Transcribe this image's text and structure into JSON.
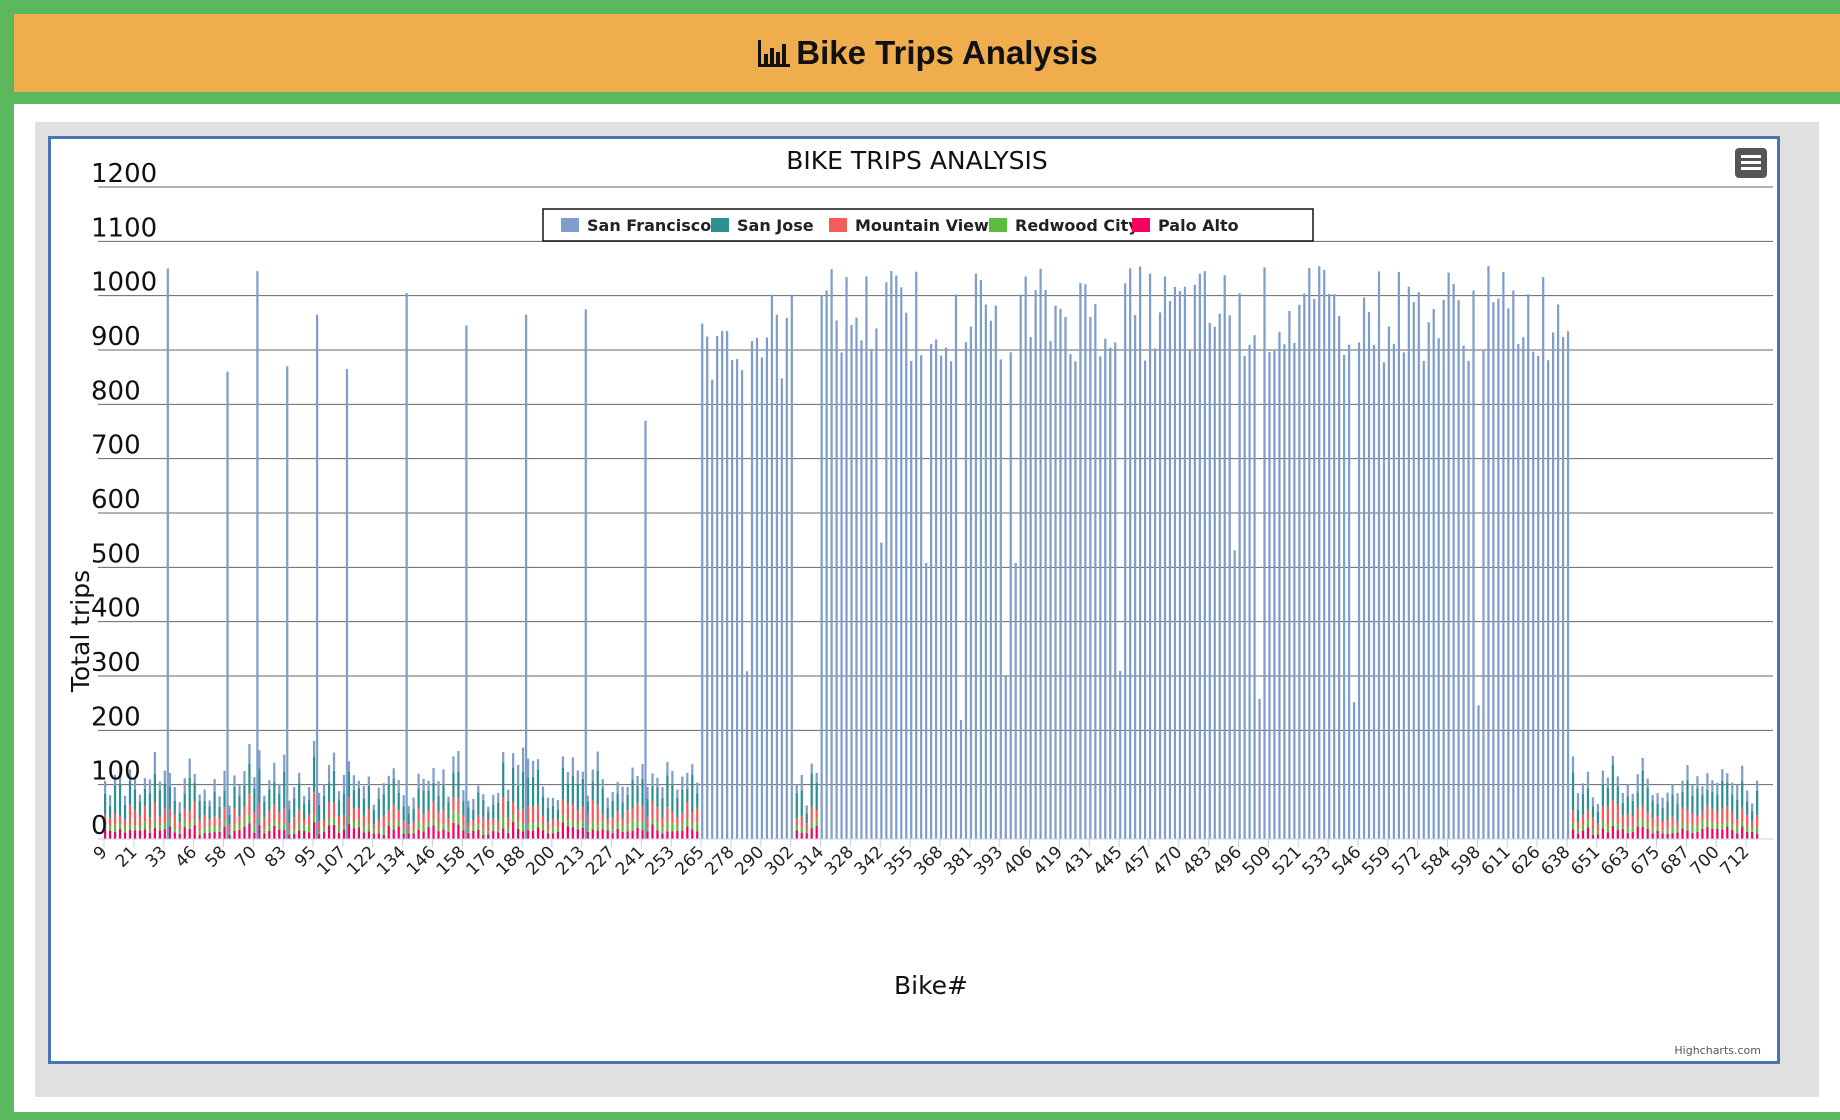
{
  "header": {
    "title": "Bike Trips Analysis",
    "icon": "bar-chart-icon"
  },
  "chart_data": {
    "type": "bar",
    "stacked": true,
    "title": "BIKE TRIPS ANALYSIS",
    "xlabel": "Bike#",
    "ylabel": "Total trips",
    "ylim": [
      0,
      1200
    ],
    "yticks": [
      0,
      100,
      200,
      300,
      400,
      500,
      600,
      700,
      800,
      900,
      1000,
      1100,
      1200
    ],
    "grid": true,
    "legend_position": "top-center",
    "credits": "Highcharts.com",
    "x_tick_labels": [
      "9",
      "21",
      "33",
      "46",
      "58",
      "70",
      "83",
      "95",
      "107",
      "122",
      "134",
      "146",
      "158",
      "176",
      "188",
      "200",
      "213",
      "227",
      "241",
      "253",
      "265",
      "278",
      "290",
      "302",
      "314",
      "328",
      "342",
      "355",
      "368",
      "381",
      "393",
      "406",
      "419",
      "431",
      "445",
      "457",
      "470",
      "483",
      "496",
      "509",
      "521",
      "533",
      "546",
      "559",
      "572",
      "584",
      "598",
      "611",
      "626",
      "638",
      "651",
      "663",
      "675",
      "687",
      "700",
      "712"
    ],
    "series": [
      {
        "name": "San Francisco",
        "color": "#7f9ecb"
      },
      {
        "name": "San Jose",
        "color": "#2b908f"
      },
      {
        "name": "Mountain View",
        "color": "#f45b5b"
      },
      {
        "name": "Redwood City",
        "color": "#5cbc3c"
      },
      {
        "name": "Palo Alto",
        "color": "#f7005f"
      }
    ],
    "sf_spikes": [
      {
        "x": "33",
        "value": 1050
      },
      {
        "x": "58",
        "value": 860
      },
      {
        "x": "70",
        "value": 1045
      },
      {
        "x": "83",
        "value": 870
      },
      {
        "x": "95",
        "value": 965
      },
      {
        "x": "107",
        "value": 865
      },
      {
        "x": "134",
        "value": 1005
      },
      {
        "x": "158",
        "value": 945
      },
      {
        "x": "188",
        "value": 965
      },
      {
        "x": "213",
        "value": 975
      },
      {
        "x": "241",
        "value": 770
      }
    ],
    "sf_block_ranges": [
      {
        "from": "265",
        "to": "302",
        "typical_value": 900
      },
      {
        "from": "314",
        "to": "638",
        "typical_value": 940
      }
    ],
    "mixed_ranges_typical_total": 130
  }
}
